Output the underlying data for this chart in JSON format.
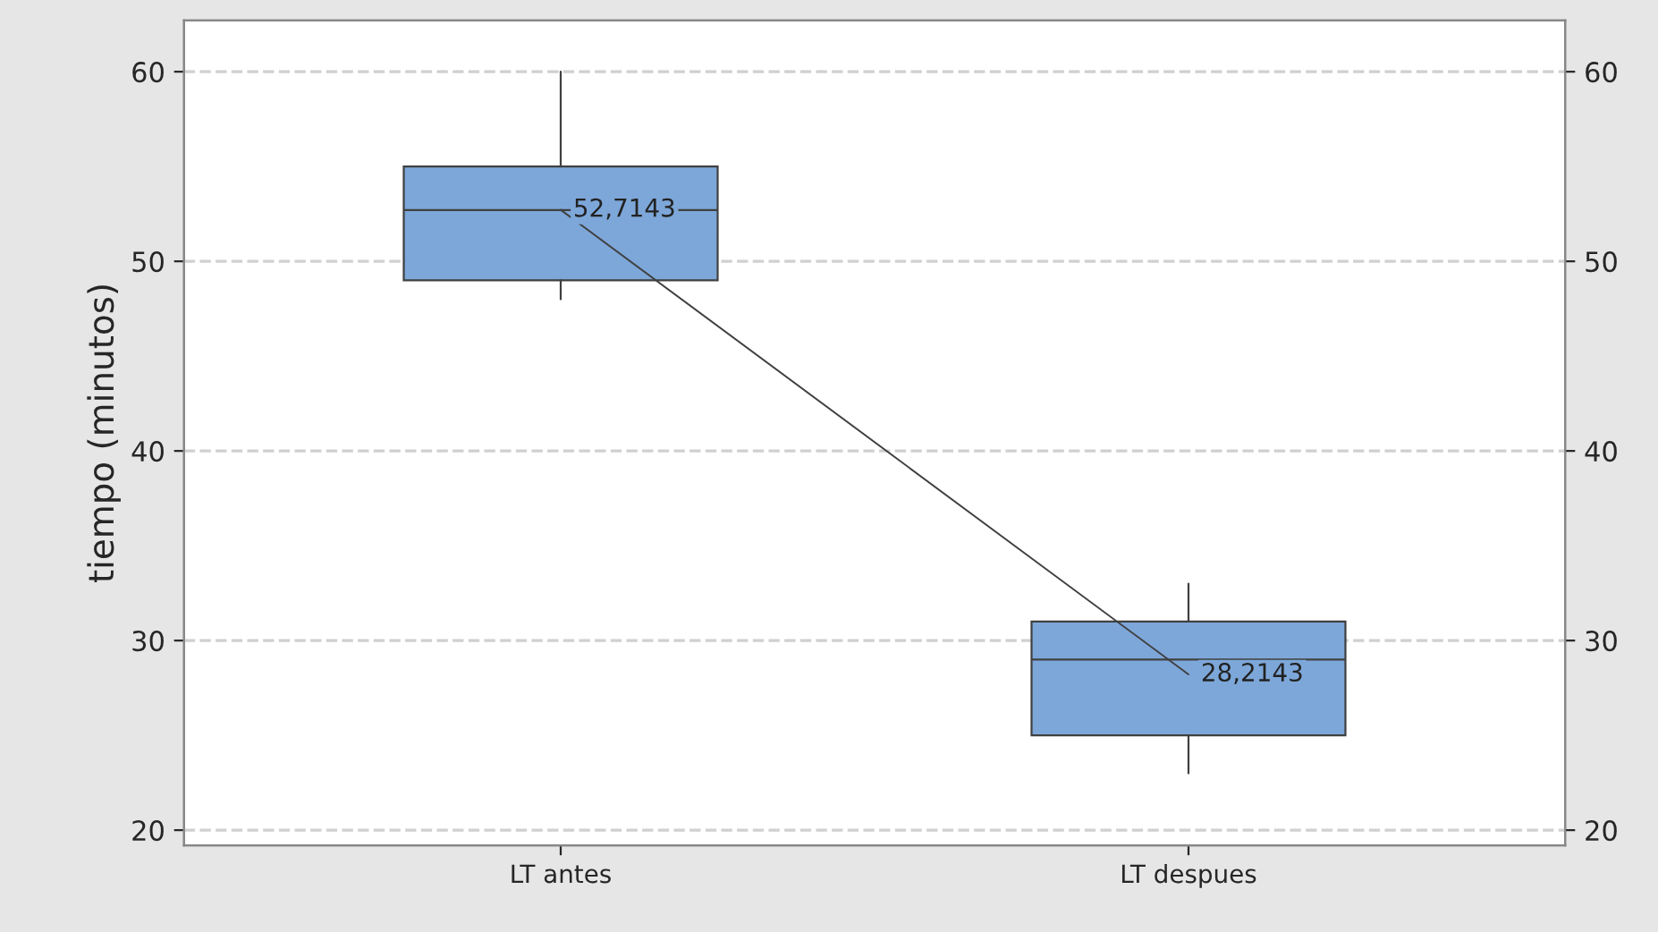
{
  "chart_data": {
    "type": "box",
    "ylabel": "tiempo (minutos)",
    "categories": [
      "LT antes",
      "LT despues"
    ],
    "boxes": [
      {
        "low": 48,
        "q1": 49,
        "median": 52.7,
        "q3": 55,
        "high": 60
      },
      {
        "low": 23,
        "q1": 25,
        "median": 29,
        "q3": 31,
        "high": 33
      }
    ],
    "color": "#7da7d9",
    "series": [
      {
        "type": "line",
        "color": "#404040",
        "values": [
          52.7143,
          28.2143
        ],
        "value_labels": [
          "52,7143",
          "28,2143"
        ]
      }
    ],
    "ylim": [
      19.2,
      62.7
    ],
    "yticks": [
      20,
      30,
      40,
      50,
      60
    ],
    "y2lim": [
      19.2,
      62.7
    ],
    "y2ticks": [
      20,
      30,
      40,
      50,
      60
    ],
    "grid": "y"
  }
}
